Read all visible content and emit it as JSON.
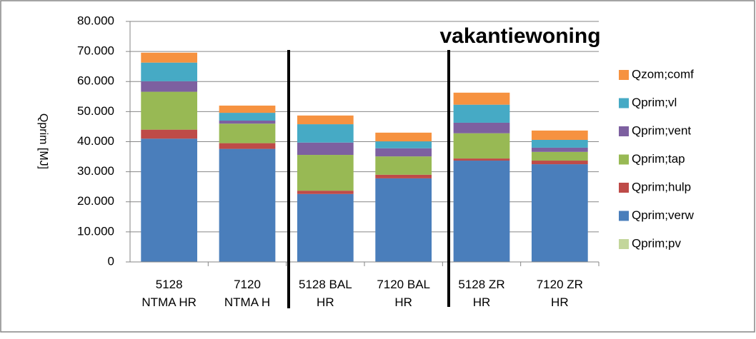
{
  "chart_data": {
    "type": "stacked-bar",
    "annotation": "vakantiewoning",
    "y_label": "Qprim [MJ]",
    "categories": [
      "5128\nNTMA HR",
      "7120\nNTMA H",
      "5128 BAL\nHR",
      "7120 BAL\nHR",
      "5128 ZR\nHR",
      "7120 ZR\nHR"
    ],
    "series": [
      {
        "name": "Qprim;pv",
        "color": "#c3d69b",
        "values": [
          0,
          0,
          0,
          0,
          0,
          0
        ]
      },
      {
        "name": "Qprim;verw",
        "color": "#4a7ebb",
        "values": [
          41000,
          37600,
          22600,
          27800,
          33700,
          32500
        ]
      },
      {
        "name": "Qprim;hulp",
        "color": "#be4b48",
        "values": [
          3000,
          1900,
          1100,
          1200,
          700,
          1200
        ]
      },
      {
        "name": "Qprim;tap",
        "color": "#98b954",
        "values": [
          12600,
          6500,
          11900,
          6100,
          8400,
          2900
        ]
      },
      {
        "name": "Qprim;vent",
        "color": "#7d60a0",
        "values": [
          3500,
          1000,
          4100,
          2700,
          3500,
          1400
        ]
      },
      {
        "name": "Qprim;vl",
        "color": "#46aac5",
        "values": [
          6200,
          2600,
          6100,
          2300,
          6000,
          2600
        ]
      },
      {
        "name": "Qzom;comf",
        "color": "#f69240",
        "values": [
          3300,
          2400,
          2900,
          2900,
          4000,
          3100
        ]
      }
    ],
    "ylim": [
      0,
      80000
    ],
    "yticks": [
      0,
      {
        "value": 10000,
        "label": "10.000"
      },
      {
        "value": 20000,
        "label": "20.000"
      },
      {
        "value": 30000,
        "label": "30.000"
      },
      {
        "value": 40000,
        "label": "40.000"
      },
      {
        "value": 50000,
        "label": "50.000"
      },
      {
        "value": 60000,
        "label": "60.000"
      },
      {
        "value": 70000,
        "label": "70.000"
      },
      {
        "value": 80000,
        "label": "80.000"
      }
    ],
    "grid": true
  }
}
